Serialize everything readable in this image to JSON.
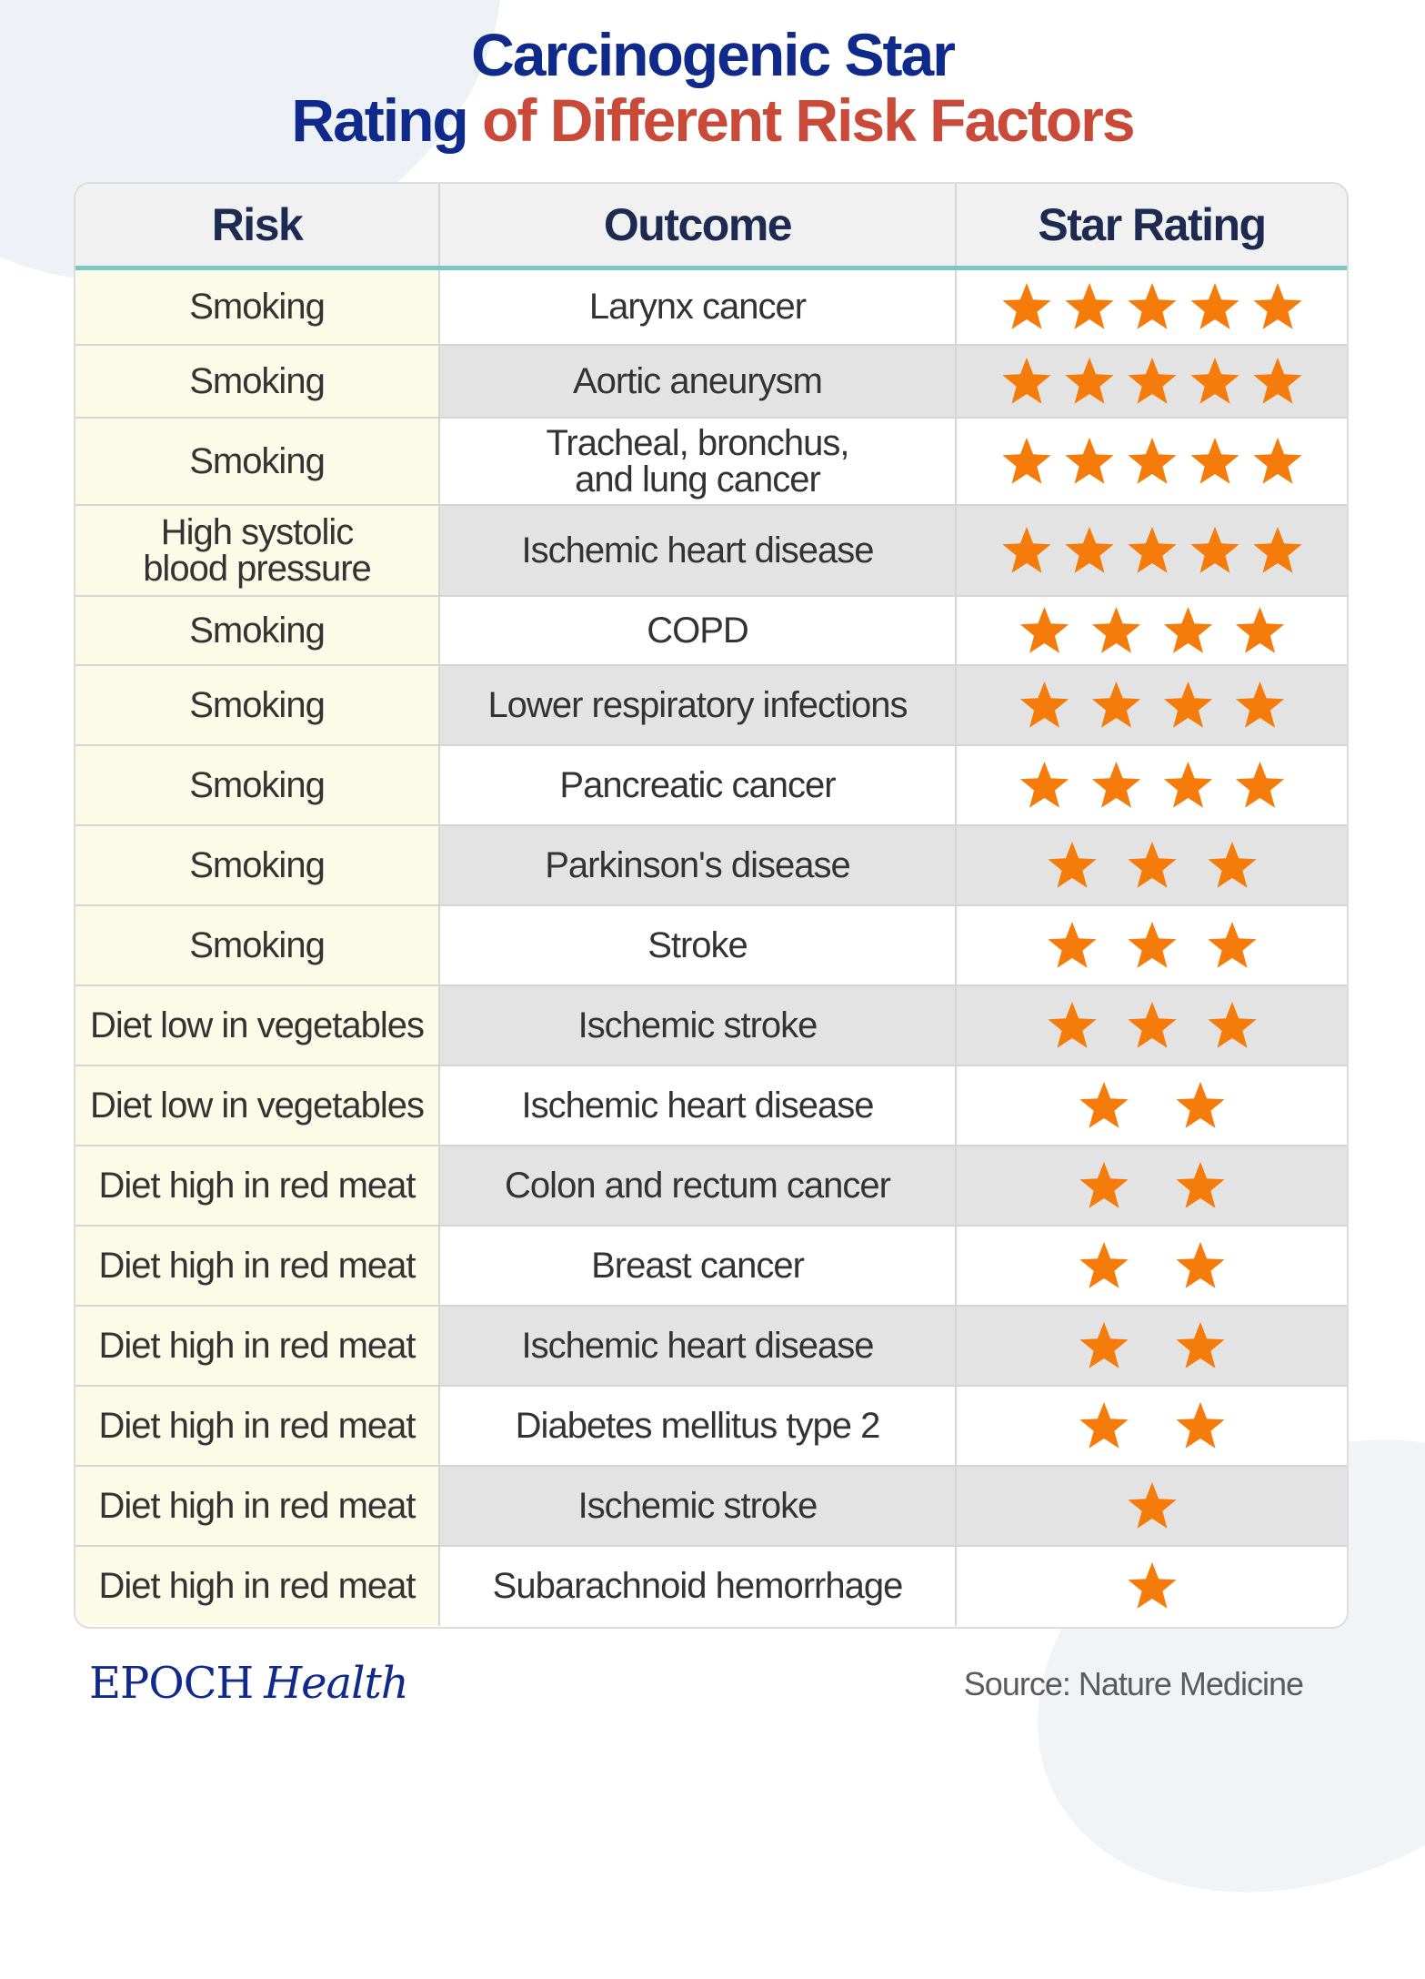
{
  "title": {
    "line1": "Carcinogenic Star",
    "line2_navy": "Rating",
    "line2_red": "of Different Risk Factors"
  },
  "colors": {
    "navy": "#102a8c",
    "red": "#c94a38",
    "star": "#f57c0a",
    "header_rule": "#7cc7c4",
    "risk_cell": "#fbfbe8"
  },
  "chart_data": {
    "type": "table",
    "columns": [
      "Risk",
      "Outcome",
      "Star Rating"
    ],
    "rows": [
      {
        "risk": "Smoking",
        "outcome": "Larynx cancer",
        "stars": 5
      },
      {
        "risk": "Smoking",
        "outcome": "Aortic aneurysm",
        "stars": 5
      },
      {
        "risk": "Smoking",
        "outcome": "Tracheal, bronchus,\nand lung cancer",
        "stars": 5
      },
      {
        "risk": "High systolic\nblood pressure",
        "outcome": "Ischemic heart disease",
        "stars": 5
      },
      {
        "risk": "Smoking",
        "outcome": "COPD",
        "stars": 4
      },
      {
        "risk": "Smoking",
        "outcome": "Lower respiratory infections",
        "stars": 4
      },
      {
        "risk": "Smoking",
        "outcome": "Pancreatic cancer",
        "stars": 4
      },
      {
        "risk": "Smoking",
        "outcome": "Parkinson's disease",
        "stars": 3
      },
      {
        "risk": "Smoking",
        "outcome": "Stroke",
        "stars": 3
      },
      {
        "risk": "Diet low in vegetables",
        "outcome": "Ischemic stroke",
        "stars": 3
      },
      {
        "risk": "Diet low in vegetables",
        "outcome": "Ischemic heart disease",
        "stars": 2
      },
      {
        "risk": "Diet high in red meat",
        "outcome": "Colon and rectum cancer",
        "stars": 2
      },
      {
        "risk": "Diet high in red meat",
        "outcome": "Breast cancer",
        "stars": 2
      },
      {
        "risk": "Diet high in red meat",
        "outcome": "Ischemic heart disease",
        "stars": 2
      },
      {
        "risk": "Diet high in red meat",
        "outcome": "Diabetes mellitus type 2",
        "stars": 2
      },
      {
        "risk": "Diet high in red meat",
        "outcome": "Ischemic stroke",
        "stars": 1
      },
      {
        "risk": "Diet high in red meat",
        "outcome": "Subarachnoid hemorrhage",
        "stars": 1
      }
    ]
  },
  "footer": {
    "logo_word": "EPOCH",
    "logo_italic": "Health",
    "source": "Source: Nature Medicine"
  },
  "icons": {
    "rating": "star-icon"
  }
}
